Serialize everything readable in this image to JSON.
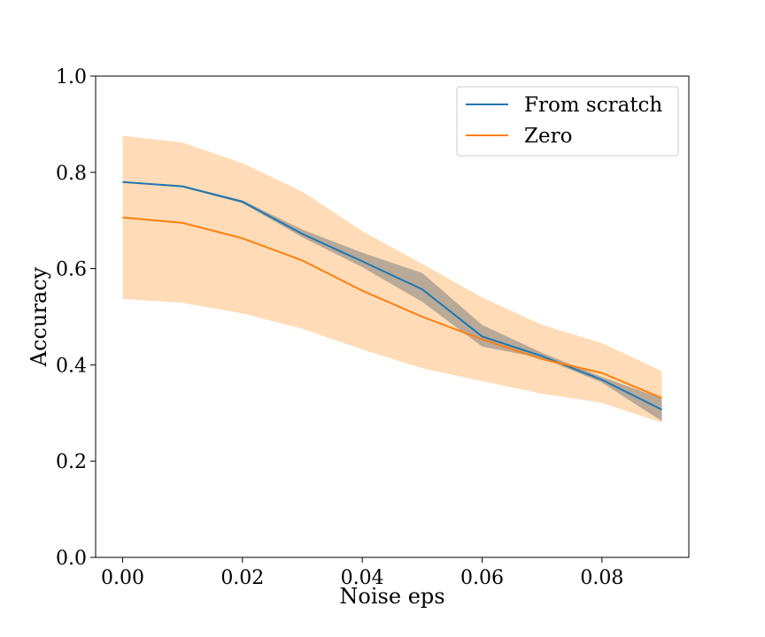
{
  "chart_data": {
    "type": "line",
    "title": "",
    "xlabel": "Noise eps",
    "ylabel": "Accuracy",
    "xlim": [
      -0.0045,
      0.0945
    ],
    "ylim": [
      0.0,
      1.0
    ],
    "xticks": [
      0.0,
      0.02,
      0.04,
      0.06,
      0.08
    ],
    "xtick_labels": [
      "0.00",
      "0.02",
      "0.04",
      "0.06",
      "0.08"
    ],
    "yticks": [
      0.0,
      0.2,
      0.4,
      0.6,
      0.8,
      1.0
    ],
    "ytick_labels": [
      "0.0",
      "0.2",
      "0.4",
      "0.6",
      "0.8",
      "1.0"
    ],
    "grid": false,
    "legend_position": "top-right",
    "x": [
      0.0,
      0.01,
      0.02,
      0.03,
      0.04,
      0.05,
      0.06,
      0.07,
      0.08,
      0.09
    ],
    "series": [
      {
        "name": "From scratch",
        "color": "#1f77b4",
        "band_color": "#7f7f7f",
        "values": [
          0.78,
          0.771,
          0.739,
          0.672,
          0.615,
          0.557,
          0.459,
          0.418,
          0.369,
          0.307
        ],
        "lower": [
          0.779,
          0.769,
          0.736,
          0.665,
          0.603,
          0.531,
          0.438,
          0.414,
          0.363,
          0.283
        ],
        "upper": [
          0.781,
          0.773,
          0.742,
          0.681,
          0.633,
          0.591,
          0.483,
          0.425,
          0.375,
          0.33
        ]
      },
      {
        "name": "Zero",
        "color": "#ff7f0e",
        "band_color": "#ffdab3",
        "values": [
          0.706,
          0.695,
          0.663,
          0.617,
          0.554,
          0.5,
          0.453,
          0.412,
          0.383,
          0.331
        ],
        "lower": [
          0.537,
          0.529,
          0.507,
          0.475,
          0.432,
          0.393,
          0.366,
          0.34,
          0.321,
          0.28
        ],
        "upper": [
          0.876,
          0.862,
          0.819,
          0.76,
          0.678,
          0.61,
          0.54,
          0.483,
          0.445,
          0.387
        ]
      }
    ]
  }
}
